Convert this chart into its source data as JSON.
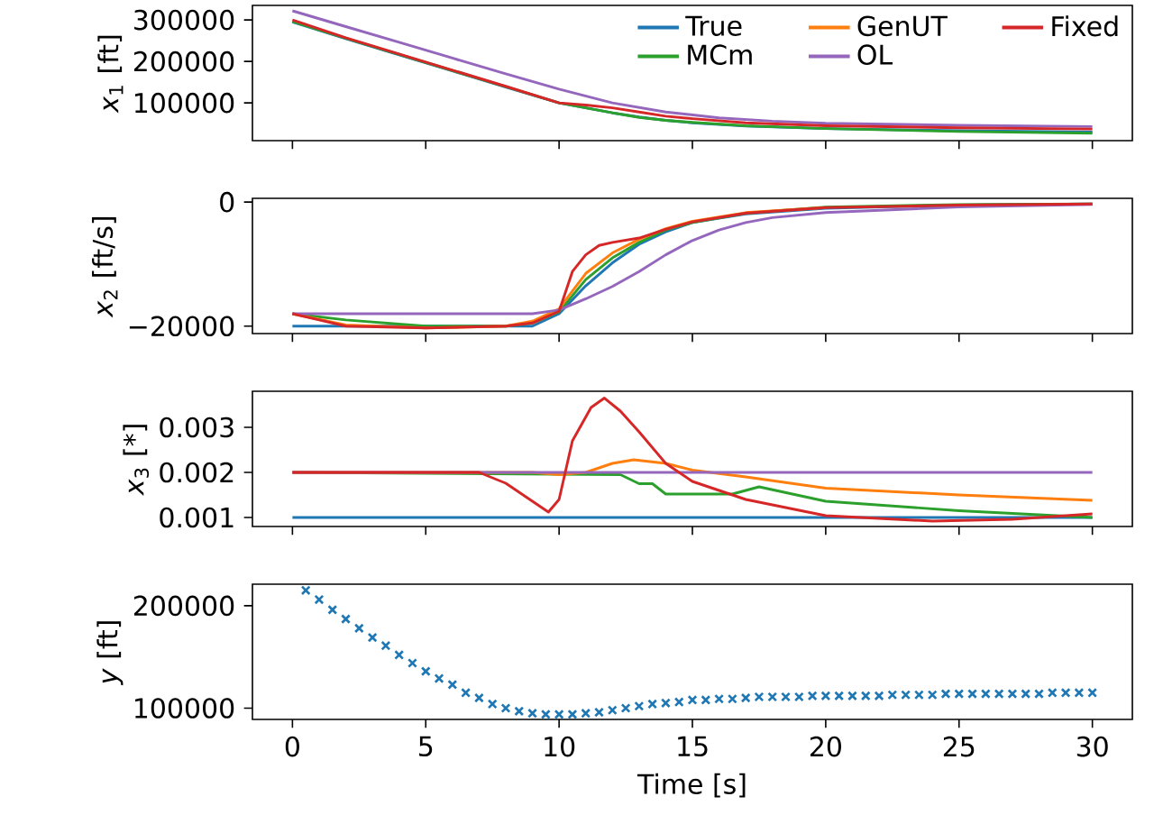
{
  "chart_data": [
    {
      "type": "line",
      "ylabel": "*x*$_{1}$ [ft]",
      "xlim": [
        -1.5,
        31.5
      ],
      "xticks": [
        0,
        5,
        10,
        15,
        20,
        25,
        30
      ],
      "ylim": [
        9000,
        335000
      ],
      "yticks": [
        100000,
        200000,
        300000
      ],
      "tick_labels": "y",
      "legend": "top right",
      "line_style": "solid",
      "marker": "none",
      "series": [
        {
          "name": "True",
          "color": "#1f77b4",
          "x": [
            0,
            2,
            4,
            6,
            8,
            10,
            11,
            12,
            13,
            14,
            15,
            17,
            20,
            25,
            30
          ],
          "values": [
            295000,
            255000,
            216000,
            177000,
            138000,
            100000,
            88000,
            76000,
            66000,
            58000,
            52000,
            44000,
            38000,
            33000,
            30000
          ]
        },
        {
          "name": "MCm",
          "color": "#2ca02c",
          "x": [
            0,
            2,
            4,
            6,
            8,
            10,
            11,
            12,
            13,
            14,
            15,
            17,
            20,
            25,
            30
          ],
          "values": [
            296000,
            256000,
            217000,
            178000,
            139000,
            100000,
            88000,
            76000,
            65000,
            58000,
            53000,
            45000,
            38000,
            31000,
            27000
          ]
        },
        {
          "name": "GenUT",
          "color": "#ff7f0e"
        },
        {
          "name": "OL",
          "color": "#9467bd",
          "x": [
            0,
            2,
            4,
            6,
            8,
            10,
            12,
            14,
            16,
            18,
            20,
            25,
            30
          ],
          "values": [
            322000,
            284000,
            246000,
            208000,
            170000,
            133000,
            100000,
            78000,
            64000,
            56000,
            51000,
            46000,
            43000
          ]
        },
        {
          "name": "Fixed",
          "color": "#d62728",
          "x": [
            0,
            2,
            4,
            6,
            8,
            10,
            11,
            12,
            13,
            14,
            15,
            17,
            20,
            25,
            30
          ],
          "values": [
            300000,
            257000,
            218000,
            179000,
            140000,
            100000,
            95000,
            88000,
            78000,
            68000,
            62000,
            52000,
            45000,
            40000,
            37000
          ]
        }
      ]
    },
    {
      "type": "line",
      "ylabel": "*x*$_{2}$ [ft/s]",
      "xlim": [
        -1.5,
        31.5
      ],
      "xticks": [
        0,
        5,
        10,
        15,
        20,
        25,
        30
      ],
      "ylim": [
        -21200,
        600
      ],
      "yticks": [
        {
          "value": -20000,
          "label": "−20000"
        },
        0
      ],
      "tick_labels": "y",
      "line_style": "solid",
      "marker": "none",
      "series": [
        {
          "color": "#1f77b4",
          "x": [
            0,
            9,
            10,
            11,
            12,
            13,
            14,
            15,
            17,
            20,
            25,
            30
          ],
          "values": [
            -20000,
            -20000,
            -18000,
            -13500,
            -9800,
            -6800,
            -4800,
            -3300,
            -1900,
            -1000,
            -500,
            -300
          ]
        },
        {
          "color": "#2ca02c",
          "x": [
            0,
            2,
            5,
            8,
            9,
            10,
            11,
            12,
            13,
            14,
            15,
            17,
            20,
            25,
            30
          ],
          "values": [
            -18000,
            -19000,
            -20000,
            -20000,
            -19500,
            -17700,
            -12500,
            -9000,
            -6500,
            -4500,
            -3300,
            -1800,
            -800,
            -400,
            -300
          ]
        },
        {
          "color": "#ff7f0e",
          "x": [
            0,
            2,
            5,
            8,
            9,
            10,
            11,
            12,
            13,
            14,
            15,
            17,
            20
          ],
          "values": [
            -18000,
            -19800,
            -20300,
            -20000,
            -19200,
            -17200,
            -11500,
            -8200,
            -6000,
            -4300,
            -3100,
            -1700,
            -900
          ]
        },
        {
          "color": "#9467bd",
          "x": [
            0,
            9,
            10,
            11,
            12,
            13,
            14,
            15,
            16,
            17,
            18,
            20,
            25,
            30
          ],
          "values": [
            -18000,
            -18000,
            -17400,
            -15600,
            -13600,
            -11200,
            -8500,
            -6200,
            -4500,
            -3300,
            -2500,
            -1700,
            -800,
            -400
          ]
        },
        {
          "color": "#d62728",
          "x": [
            0,
            1,
            2,
            5,
            8,
            9,
            10,
            10.5,
            11,
            11.5,
            12,
            13,
            14,
            15,
            17,
            20,
            25,
            30
          ],
          "values": [
            -18000,
            -19000,
            -20000,
            -20300,
            -20000,
            -19500,
            -17600,
            -11200,
            -8500,
            -7000,
            -6500,
            -5800,
            -4400,
            -3200,
            -1800,
            -900,
            -500,
            -300
          ]
        }
      ]
    },
    {
      "type": "line",
      "ylabel": "*x*$_{3}$ [*]",
      "xlim": [
        -1.5,
        31.5
      ],
      "xticks": [
        0,
        5,
        10,
        15,
        20,
        25,
        30
      ],
      "ylim": [
        0.0008,
        0.0038
      ],
      "yticks": [
        0.001,
        0.002,
        0.003
      ],
      "tick_labels": "y",
      "line_style": "solid",
      "marker": "none",
      "series": [
        {
          "color": "#1f77b4",
          "x": [
            0,
            30
          ],
          "values": [
            0.001,
            0.001
          ]
        },
        {
          "color": "#2ca02c",
          "x": [
            0,
            12.3,
            13,
            13.5,
            14,
            16.5,
            17.5,
            20,
            25,
            30
          ],
          "values": [
            0.002,
            0.00195,
            0.00175,
            0.00175,
            0.00152,
            0.00152,
            0.00168,
            0.00136,
            0.00115,
            0.001
          ]
        },
        {
          "color": "#ff7f0e",
          "x": [
            0,
            9,
            10,
            11,
            12,
            12.8,
            14,
            15,
            17,
            20,
            25,
            30
          ],
          "values": [
            0.002,
            0.002,
            0.00195,
            0.002,
            0.0022,
            0.00228,
            0.0022,
            0.00205,
            0.0019,
            0.00165,
            0.0015,
            0.00138
          ]
        },
        {
          "color": "#9467bd",
          "x": [
            0,
            30
          ],
          "values": [
            0.002,
            0.002
          ]
        },
        {
          "color": "#d62728",
          "x": [
            0,
            7,
            8,
            9,
            9.6,
            10,
            10.5,
            11.2,
            11.7,
            12.3,
            13,
            14,
            15,
            17,
            20,
            24,
            27,
            30
          ],
          "values": [
            0.002,
            0.002,
            0.00176,
            0.00136,
            0.00112,
            0.0014,
            0.0027,
            0.00344,
            0.00365,
            0.00336,
            0.0029,
            0.0022,
            0.0018,
            0.0014,
            0.00104,
            0.00092,
            0.00096,
            0.00108
          ]
        }
      ]
    },
    {
      "type": "scatter",
      "xlabel": "Time [s]",
      "ylabel": "*y* [ft]",
      "xlim": [
        -1.5,
        31.5
      ],
      "xticks": [
        0,
        5,
        10,
        15,
        20,
        25,
        30
      ],
      "ylim": [
        89000,
        221000
      ],
      "yticks": [
        100000,
        200000
      ],
      "marker": "cross",
      "x": [
        0.5,
        1,
        1.5,
        2,
        2.5,
        3,
        3.5,
        4,
        4.5,
        5,
        5.5,
        6,
        6.5,
        7,
        7.5,
        8,
        8.5,
        9,
        9.5,
        10,
        10.5,
        11,
        11.5,
        12,
        12.5,
        13,
        13.5,
        14,
        14.5,
        15,
        15.5,
        16,
        16.5,
        17,
        17.5,
        18,
        18.5,
        19,
        19.5,
        20,
        20.5,
        21,
        21.5,
        22,
        22.5,
        23,
        23.5,
        24,
        24.5,
        25,
        25.5,
        26,
        26.5,
        27,
        27.5,
        28,
        28.5,
        29,
        29.5,
        30
      ],
      "series": [
        {
          "color": "#1f77b4",
          "values": [
            215000,
            206000,
            196000,
            187000,
            178000,
            169000,
            161000,
            152000,
            144000,
            136000,
            129000,
            123000,
            115000,
            110000,
            104000,
            100000,
            97000,
            95000,
            94000,
            94000,
            94000,
            95000,
            96000,
            98000,
            100000,
            102000,
            104000,
            105000,
            106000,
            108000,
            108000,
            109000,
            109000,
            110000,
            111000,
            111000,
            111000,
            111000,
            112000,
            112000,
            112000,
            112000,
            112000,
            112000,
            113000,
            113000,
            113000,
            113000,
            114000,
            114000,
            114000,
            114000,
            114000,
            114000,
            114000,
            114000,
            115000,
            115000,
            115000,
            115000
          ]
        }
      ]
    }
  ]
}
